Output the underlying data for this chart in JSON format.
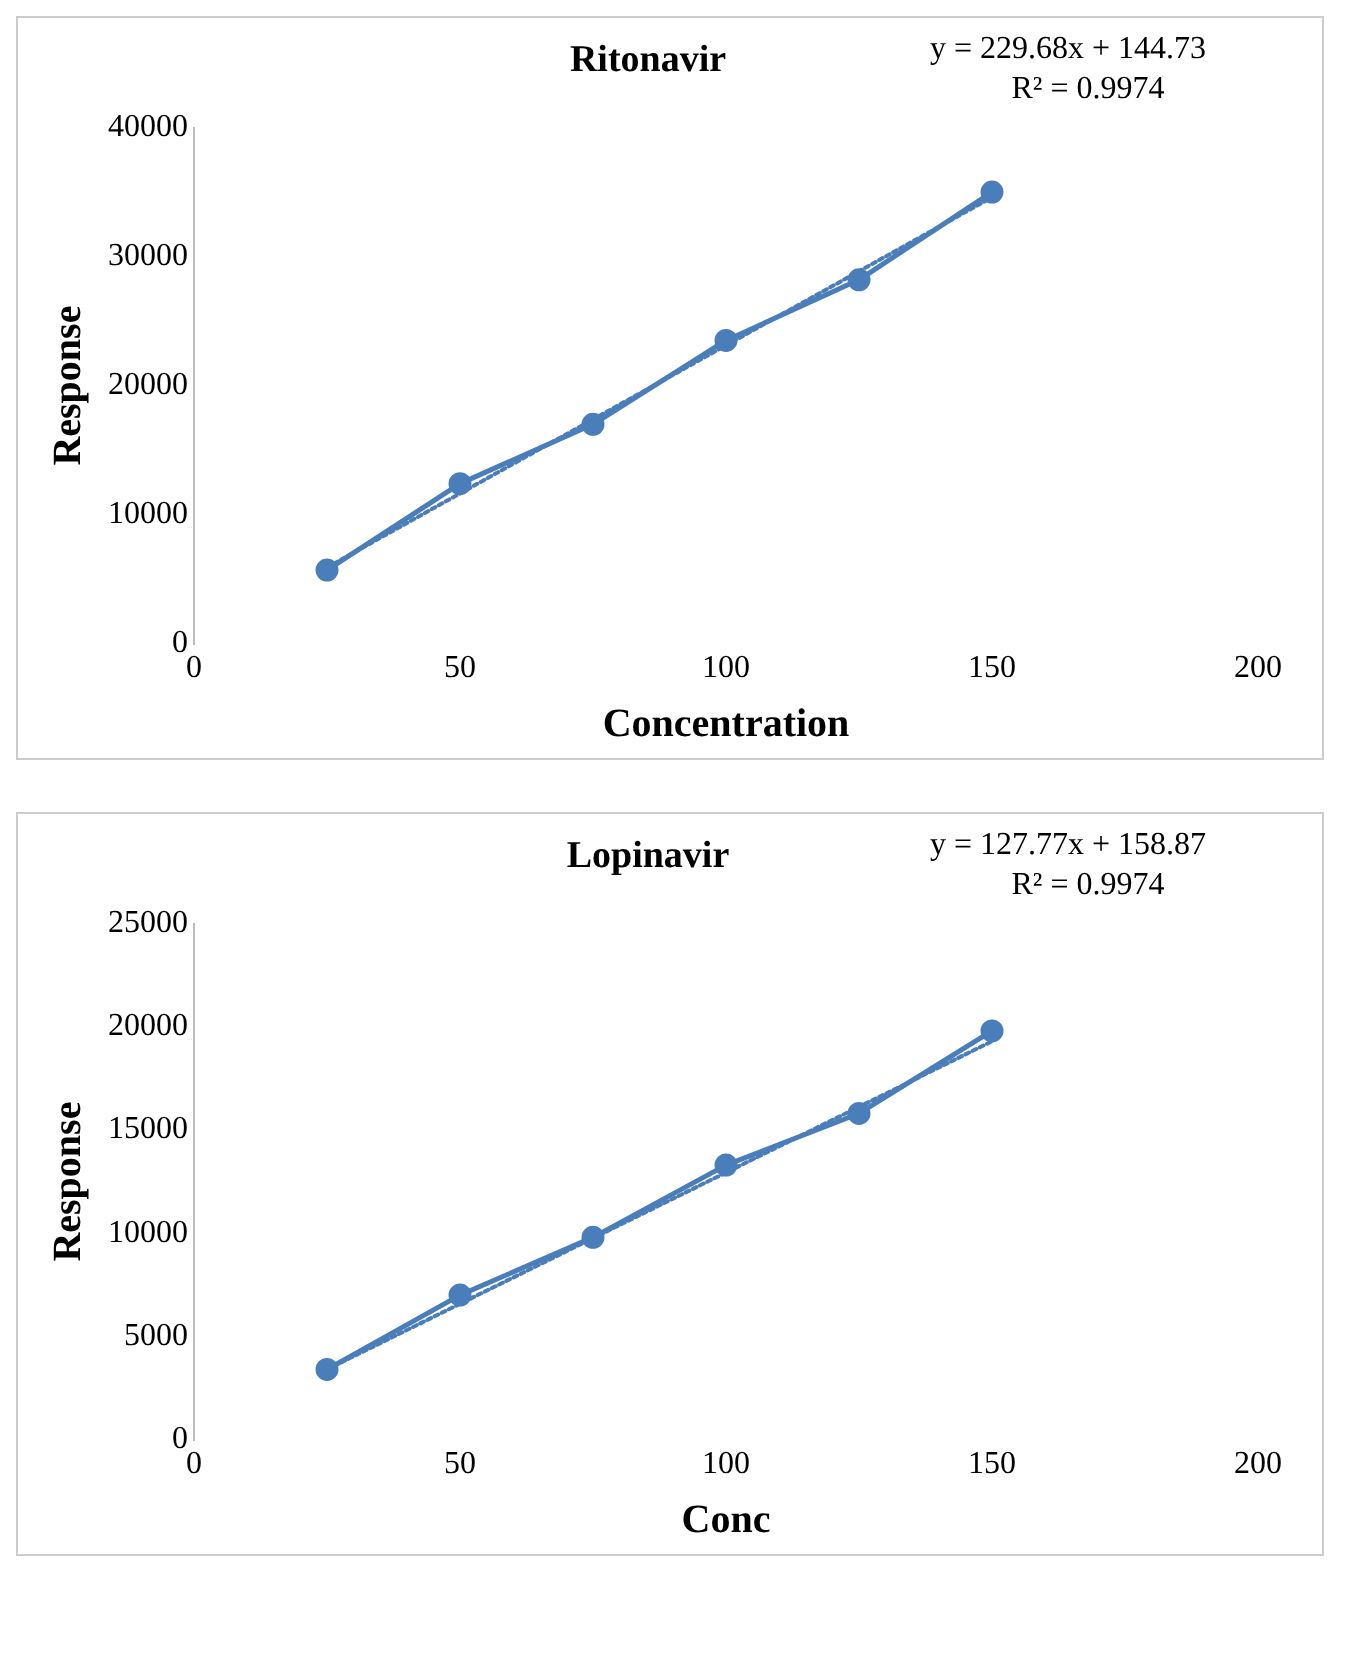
{
  "chart_data": [
    {
      "type": "line",
      "title": "Ritonavir",
      "xlabel": "Concentration",
      "ylabel": "Response",
      "annotations": [
        "y = 229.68x + 144.73",
        "R² = 0.9974"
      ],
      "xlim": [
        0,
        200
      ],
      "xticks": [
        0,
        50,
        100,
        150,
        200
      ],
      "ylim": [
        0,
        40000
      ],
      "yticks": [
        0,
        10000,
        20000,
        30000,
        40000
      ],
      "grid": false,
      "legend": false,
      "series": [
        {
          "color": "#4a7ebb",
          "x": [
            25,
            50,
            75,
            100,
            125,
            150
          ],
          "values": [
            5700,
            12400,
            17000,
            23500,
            28200,
            35000
          ],
          "marker": "circle",
          "line_style": "solid"
        },
        {
          "color": "#4a7ebb",
          "x": [
            25,
            150
          ],
          "values": [
            5900,
            34600
          ],
          "marker": "none",
          "line_style": "dotted"
        }
      ]
    },
    {
      "type": "line",
      "title": "Lopinavir",
      "xlabel": "Conc",
      "ylabel": "Response",
      "annotations": [
        "y = 127.77x + 158.87",
        "R² = 0.9974"
      ],
      "xlim": [
        0,
        200
      ],
      "xticks": [
        0,
        50,
        100,
        150,
        200
      ],
      "ylim": [
        0,
        25000
      ],
      "yticks": [
        0,
        5000,
        10000,
        15000,
        20000,
        25000
      ],
      "grid": false,
      "legend": false,
      "series": [
        {
          "color": "#4a7ebb",
          "x": [
            25,
            50,
            75,
            100,
            125,
            150
          ],
          "values": [
            3400,
            7000,
            9800,
            13300,
            15800,
            19800
          ],
          "marker": "circle",
          "line_style": "solid"
        },
        {
          "color": "#4a7ebb",
          "x": [
            25,
            150
          ],
          "values": [
            3400,
            19300
          ],
          "marker": "none",
          "line_style": "dotted"
        }
      ]
    }
  ]
}
